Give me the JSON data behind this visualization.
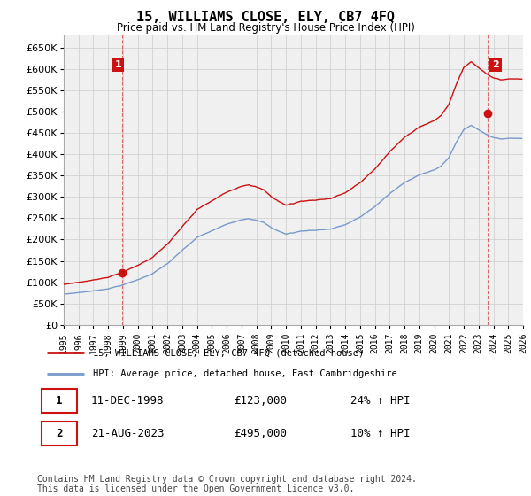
{
  "title": "15, WILLIAMS CLOSE, ELY, CB7 4FQ",
  "subtitle": "Price paid vs. HM Land Registry's House Price Index (HPI)",
  "hpi_label": "HPI: Average price, detached house, East Cambridgeshire",
  "property_label": "15, WILLIAMS CLOSE, ELY, CB7 4FQ (detached house)",
  "sale1_date": "11-DEC-1998",
  "sale1_price": 123000,
  "sale1_note": "24% ↑ HPI",
  "sale2_date": "21-AUG-2023",
  "sale2_price": 495000,
  "sale2_note": "10% ↑ HPI",
  "footnote": "Contains HM Land Registry data © Crown copyright and database right 2024.\nThis data is licensed under the Open Government Licence v3.0.",
  "hpi_color": "#7799cc",
  "property_color": "#cc1111",
  "background_color": "#f0f0f0",
  "grid_color": "#cccccc",
  "ylim_min": 0,
  "ylim_max": 680000,
  "y_ticks": [
    0,
    50000,
    100000,
    150000,
    200000,
    250000,
    300000,
    350000,
    400000,
    450000,
    500000,
    550000,
    600000,
    650000
  ],
  "x_start_year": 1995,
  "x_end_year": 2026,
  "sale1_year_float": 1998.958,
  "sale2_year_float": 2023.625,
  "key_times_hpi": [
    1995.0,
    1996.0,
    1997.0,
    1998.0,
    1999.0,
    2000.0,
    2001.0,
    2002.0,
    2003.0,
    2004.0,
    2005.0,
    2006.0,
    2007.0,
    2007.5,
    2008.0,
    2008.5,
    2009.0,
    2009.5,
    2010.0,
    2010.5,
    2011.0,
    2012.0,
    2013.0,
    2014.0,
    2015.0,
    2016.0,
    2017.0,
    2018.0,
    2019.0,
    2020.0,
    2020.5,
    2021.0,
    2021.5,
    2022.0,
    2022.5,
    2023.0,
    2023.5,
    2024.0,
    2024.5,
    2025.0
  ],
  "key_vals_hpi": [
    72000,
    76000,
    80000,
    86000,
    95000,
    107000,
    122000,
    145000,
    175000,
    205000,
    220000,
    235000,
    248000,
    252000,
    248000,
    242000,
    230000,
    222000,
    215000,
    218000,
    222000,
    225000,
    228000,
    238000,
    255000,
    280000,
    310000,
    335000,
    355000,
    365000,
    375000,
    395000,
    430000,
    460000,
    470000,
    460000,
    450000,
    442000,
    438000,
    440000
  ]
}
